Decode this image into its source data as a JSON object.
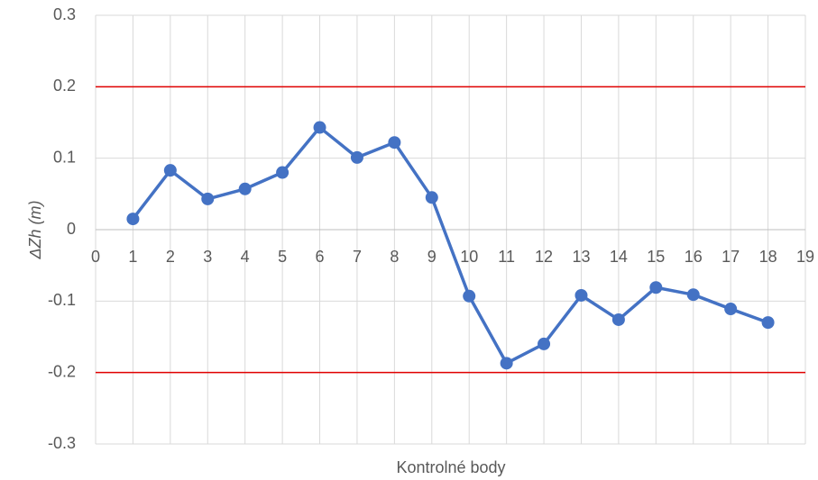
{
  "chart_data": {
    "type": "line",
    "xlabel": "Kontrolné body",
    "ylabel": "ΔZh (m)",
    "series": [
      {
        "color": "#4472c4",
        "x": [
          1,
          2,
          3,
          4,
          5,
          6,
          7,
          8,
          9,
          10,
          11,
          12,
          13,
          14,
          15,
          16,
          17,
          18
        ],
        "values": [
          0.015,
          0.083,
          0.043,
          0.057,
          0.08,
          0.143,
          0.101,
          0.122,
          0.045,
          -0.093,
          -0.187,
          -0.16,
          -0.092,
          -0.126,
          -0.081,
          -0.091,
          -0.111,
          -0.13
        ]
      }
    ],
    "hlines": [
      0.2,
      -0.2
    ],
    "hline_color": "#e00000",
    "xlim": [
      0,
      19
    ],
    "xticks": [
      0,
      1,
      2,
      3,
      4,
      5,
      6,
      7,
      8,
      9,
      10,
      11,
      12,
      13,
      14,
      15,
      16,
      17,
      18,
      19
    ],
    "ylim": [
      -0.3,
      0.3
    ],
    "yticks": [
      -0.3,
      -0.2,
      -0.1,
      0,
      0.1,
      0.2,
      0.3
    ],
    "grid": true
  }
}
